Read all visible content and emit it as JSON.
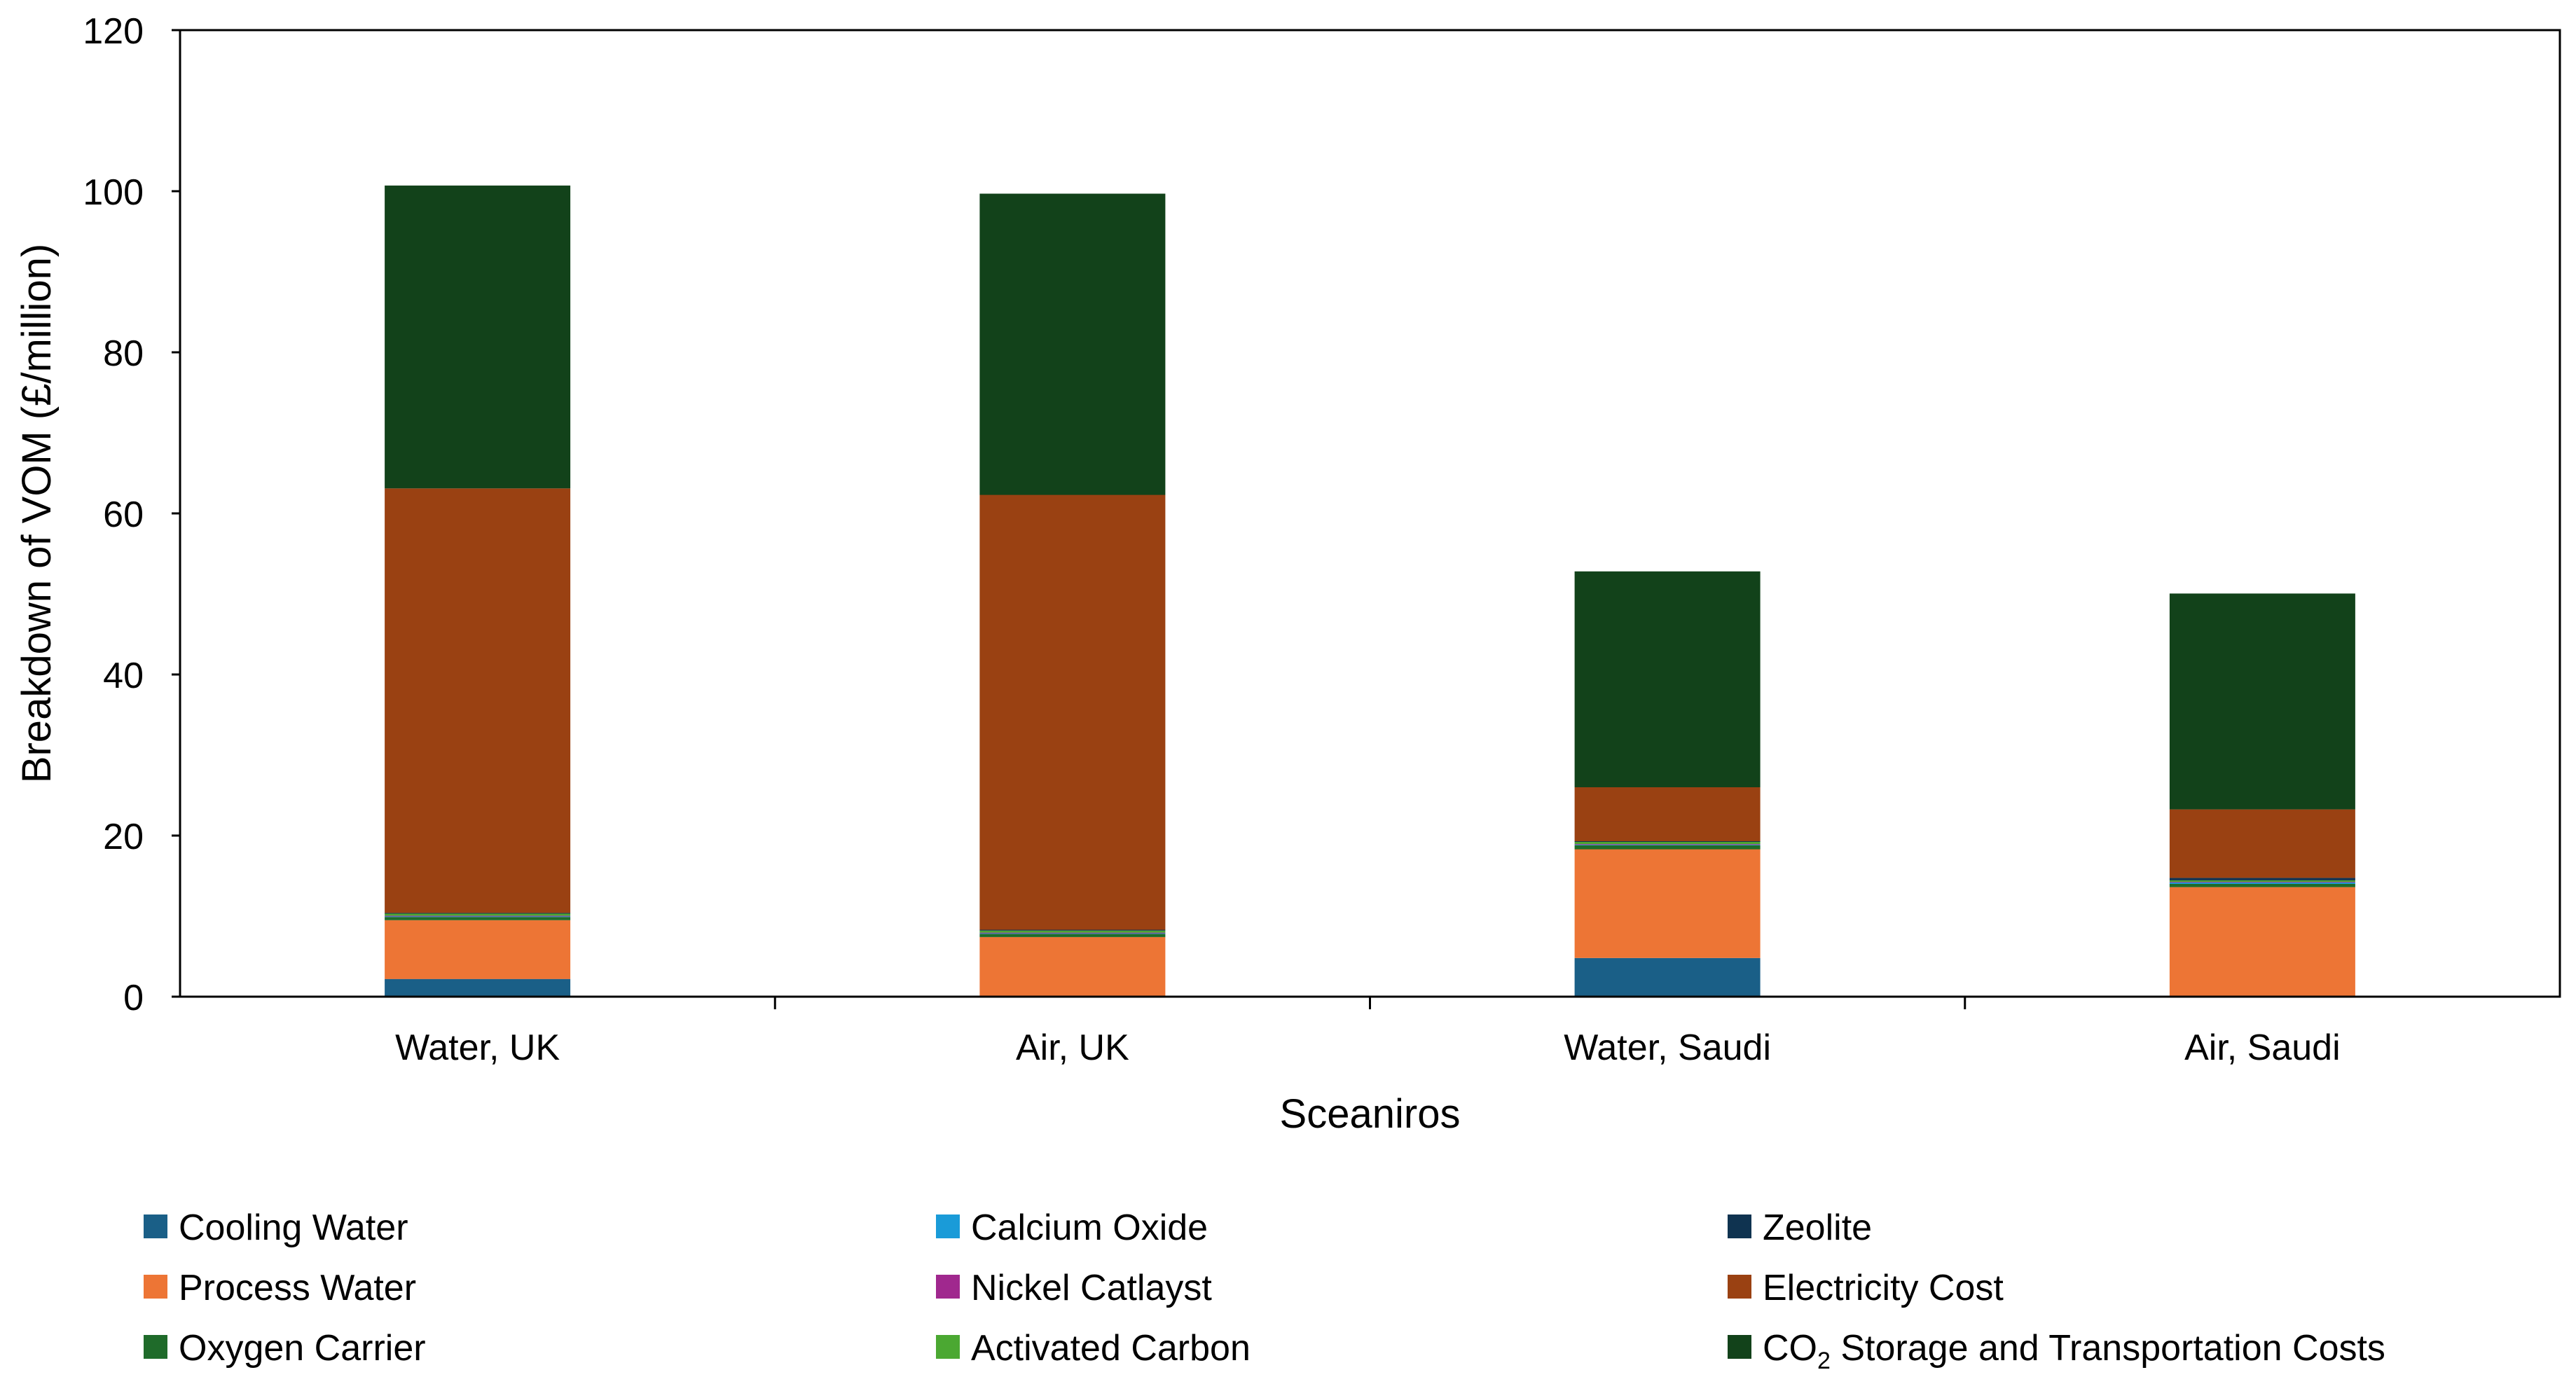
{
  "chart_data": {
    "type": "bar",
    "stacked": true,
    "title": "",
    "xlabel": "Sceaniros",
    "ylabel": "Breakdown of VOM (£/million)",
    "ylim": [
      0,
      120
    ],
    "yticks": [
      0,
      20,
      40,
      60,
      80,
      100,
      120
    ],
    "grid": false,
    "legend_position": "bottom",
    "categories": [
      "Water, UK",
      "Air, UK",
      "Water, Saudi",
      "Air, Saudi"
    ],
    "series": [
      {
        "name": "Cooling Water",
        "color": "#1a5f87",
        "values": [
          2.2,
          0.0,
          4.8,
          0.0
        ]
      },
      {
        "name": "Process Water",
        "color": "#ed7535",
        "values": [
          7.3,
          7.4,
          13.5,
          13.6
        ]
      },
      {
        "name": "Oxygen Carrier",
        "color": "#1f6b2a",
        "values": [
          0.4,
          0.4,
          0.5,
          0.4
        ]
      },
      {
        "name": "Calcium Oxide",
        "color": "#1a9bd8",
        "values": [
          0.1,
          0.1,
          0.1,
          0.2
        ]
      },
      {
        "name": "Nickel Catlayst",
        "color": "#a0288e",
        "values": [
          0.05,
          0.05,
          0.05,
          0.05
        ]
      },
      {
        "name": "Activated Carbon",
        "color": "#4ba832",
        "values": [
          0.25,
          0.25,
          0.3,
          0.2
        ]
      },
      {
        "name": "Zeolite",
        "color": "#0f3350",
        "values": [
          0.1,
          0.1,
          0.05,
          0.3
        ]
      },
      {
        "name": "Electricity Cost",
        "color": "#9a4112",
        "values": [
          52.7,
          54.0,
          6.7,
          8.5
        ]
      },
      {
        "name": "CO2 Storage and Transportation Costs",
        "label_main": "CO",
        "label_sub": "2",
        "label_rest": " Storage and Transportation Costs",
        "color": "#12421a",
        "values": [
          37.6,
          37.4,
          26.8,
          26.8
        ]
      }
    ]
  }
}
